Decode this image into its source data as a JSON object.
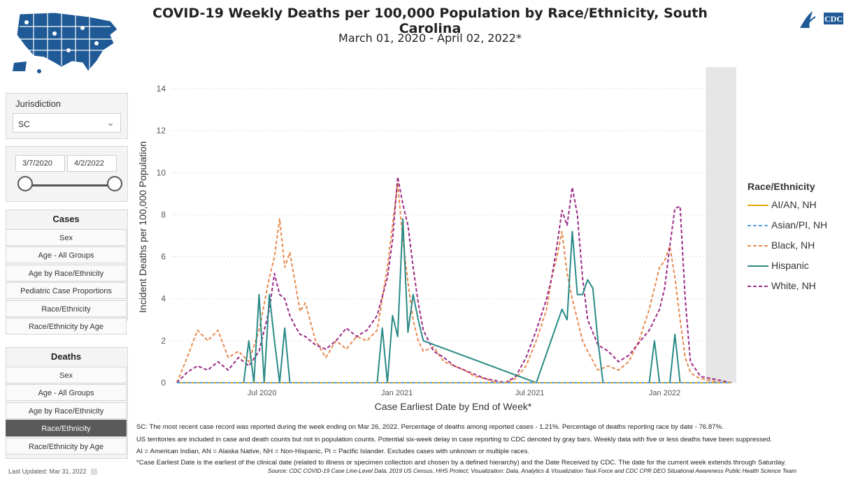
{
  "title": "COVID-19 Weekly Deaths per 100,000 Population by Race/Ethnicity, South Carolina",
  "subtitle": "March 01, 2020 - April 02, 2022*",
  "logo_text": "CDC",
  "sidebar": {
    "jurisdiction_label": "Jurisdiction",
    "jurisdiction_value": "SC",
    "date_start": "3/7/2020",
    "date_end": "4/2/2022",
    "cases_header": "Cases",
    "cases_items": [
      "Sex",
      "Age - All Groups",
      "Age by Race/Ethnicity",
      "Pediatric Case Proportions",
      "Race/Ethnicity",
      "Race/Ethnicity by Age"
    ],
    "deaths_header": "Deaths",
    "deaths_items": [
      "Sex",
      "Age - All Groups",
      "Age by Race/Ethnicity",
      "Race/Ethnicity",
      "Race/Ethnicity by Age"
    ],
    "deaths_active": "Race/Ethnicity",
    "last_updated": "Last Updated: Mar 31, 2022"
  },
  "notes": [
    "SC: The most recent case record was reported during the week ending on Mar 26, 2022. Percentage of deaths among reported cases - 1.21%. Percentage of deaths reporting race by date - 76.87%.",
    "US territories are included in case and death counts but not in population counts. Potential six-week delay in case reporting to CDC denoted by gray bars. Weekly data with five or less deaths have been suppressed.",
    "AI = American Indian, AN = Alaska Native, NH = Non-Hispanic, PI = Pacific Islander. Excludes cases with unknown or multiple races.",
    "*Case Earliest Date is the earliest of the clinical date (related to illness or specimen collection and chosen by a defined hierarchy) and the Date Received by CDC. The date for the current week extends through Saturday."
  ],
  "source": "Source: CDC COVID-19 Case Line-Level Data, 2019 US Census, HHS Protect; Visualization: Data, Analytics & Visualization Task Force and CDC CPR DEO Situational Awareness Public Health Science Team",
  "chart_data": {
    "type": "line",
    "xlabel": "Case Earliest Date by End of Week*",
    "ylabel": "Incident Deaths per 100,000 Population",
    "ylim": [
      0,
      14
    ],
    "yticks": [
      0,
      2,
      4,
      6,
      8,
      10,
      12,
      14
    ],
    "xlim": [
      "2020-03-07",
      "2022-04-02"
    ],
    "xticks": [
      {
        "date": "2020-07-01",
        "label": "Jul 2020"
      },
      {
        "date": "2021-01-01",
        "label": "Jan 2021"
      },
      {
        "date": "2021-07-01",
        "label": "Jul 2021"
      },
      {
        "date": "2022-01-01",
        "label": "Jan 2022"
      }
    ],
    "shaded_region": {
      "start": "2022-02-26",
      "end": "2022-04-02"
    },
    "legend_title": "Race/Ethnicity",
    "legend_position": "right",
    "series": [
      {
        "name": "AI/AN, NH",
        "color": "#e8a600",
        "dash": "solid",
        "dates": [
          "2020-03-07",
          "2022-04-02"
        ],
        "values": [
          0,
          0
        ]
      },
      {
        "name": "Asian/PI, NH",
        "color": "#5aa0e0",
        "dash": "dashed",
        "dates": [
          "2020-03-07",
          "2022-04-02"
        ],
        "values": [
          0,
          0
        ]
      },
      {
        "name": "Black, NH",
        "color": "#e88a4e",
        "dash": "dashed",
        "dates": [
          "2020-03-07",
          "2020-03-21",
          "2020-04-04",
          "2020-04-18",
          "2020-05-02",
          "2020-05-16",
          "2020-05-30",
          "2020-06-13",
          "2020-06-27",
          "2020-07-11",
          "2020-07-18",
          "2020-07-25",
          "2020-08-01",
          "2020-08-08",
          "2020-08-15",
          "2020-08-22",
          "2020-08-29",
          "2020-09-12",
          "2020-09-26",
          "2020-10-10",
          "2020-10-24",
          "2020-11-07",
          "2020-11-21",
          "2020-12-05",
          "2020-12-12",
          "2020-12-19",
          "2020-12-26",
          "2021-01-02",
          "2021-01-09",
          "2021-01-16",
          "2021-01-23",
          "2021-01-30",
          "2021-02-06",
          "2021-02-20",
          "2021-03-06",
          "2021-03-20",
          "2021-04-03",
          "2021-04-17",
          "2021-05-01",
          "2021-05-15",
          "2021-05-29",
          "2021-06-12",
          "2021-06-26",
          "2021-07-10",
          "2021-07-24",
          "2021-07-31",
          "2021-08-07",
          "2021-08-14",
          "2021-08-21",
          "2021-08-28",
          "2021-09-04",
          "2021-09-11",
          "2021-09-18",
          "2021-10-02",
          "2021-10-16",
          "2021-10-30",
          "2021-11-13",
          "2021-11-27",
          "2021-12-11",
          "2021-12-25",
          "2022-01-01",
          "2022-01-08",
          "2022-01-15",
          "2022-01-22",
          "2022-01-29",
          "2022-02-05",
          "2022-02-12",
          "2022-02-19",
          "2022-03-05",
          "2022-03-19",
          "2022-04-02"
        ],
        "values": [
          0,
          1.2,
          2.5,
          2.0,
          2.5,
          1.2,
          1.5,
          1.0,
          2.5,
          5.0,
          6.0,
          7.8,
          5.5,
          6.2,
          4.8,
          3.4,
          3.8,
          2.0,
          1.2,
          2.0,
          1.6,
          2.2,
          2.0,
          2.5,
          4.0,
          5.5,
          7.5,
          9.5,
          6.8,
          4.8,
          3.0,
          2.0,
          1.5,
          1.7,
          1.0,
          0.8,
          0.6,
          0.3,
          0.2,
          0,
          0,
          0.2,
          0.8,
          2.0,
          3.5,
          5.0,
          6.0,
          7.2,
          5.2,
          4.0,
          3.0,
          2.0,
          1.5,
          0.6,
          0.8,
          0.6,
          1.0,
          2.0,
          3.5,
          5.5,
          5.8,
          6.5,
          5.0,
          3.0,
          1.2,
          0.5,
          0.3,
          0.2,
          0.1,
          0,
          0
        ]
      },
      {
        "name": "Hispanic",
        "color": "#2a8a86",
        "dash": "solid",
        "dates": [
          "2020-03-07",
          "2020-06-06",
          "2020-06-13",
          "2020-06-20",
          "2020-06-27",
          "2020-07-04",
          "2020-07-11",
          "2020-07-18",
          "2020-07-25",
          "2020-08-01",
          "2020-08-08",
          "2020-08-15",
          "2020-08-22",
          "2020-12-05",
          "2020-12-12",
          "2020-12-19",
          "2020-12-26",
          "2021-01-02",
          "2021-01-09",
          "2021-01-16",
          "2021-01-23",
          "2021-01-30",
          "2021-02-06",
          "2021-07-10",
          "2021-08-14",
          "2021-08-21",
          "2021-08-28",
          "2021-09-04",
          "2021-09-11",
          "2021-09-18",
          "2021-09-25",
          "2021-10-02",
          "2021-10-09",
          "2021-10-16",
          "2021-10-23",
          "2021-12-11",
          "2021-12-18",
          "2021-12-25",
          "2022-01-08",
          "2022-01-15",
          "2022-01-22",
          "2022-04-02"
        ],
        "values": [
          0,
          0,
          2.0,
          0,
          4.2,
          0,
          4.2,
          2.0,
          0,
          2.6,
          0,
          0,
          0,
          0,
          2.6,
          0,
          3.2,
          2.2,
          7.8,
          2.4,
          4.2,
          3.0,
          2.0,
          0,
          3.5,
          3.0,
          7.2,
          4.2,
          4.2,
          4.9,
          4.5,
          2.0,
          0,
          0,
          0,
          0,
          2.0,
          0,
          0,
          2.3,
          0,
          0
        ]
      },
      {
        "name": "White, NH",
        "color": "#9b2a86",
        "dash": "dashed",
        "dates": [
          "2020-03-07",
          "2020-03-21",
          "2020-04-04",
          "2020-04-18",
          "2020-05-02",
          "2020-05-16",
          "2020-05-30",
          "2020-06-13",
          "2020-06-27",
          "2020-07-11",
          "2020-07-18",
          "2020-07-25",
          "2020-08-01",
          "2020-08-08",
          "2020-08-15",
          "2020-08-22",
          "2020-08-29",
          "2020-09-12",
          "2020-09-26",
          "2020-10-10",
          "2020-10-24",
          "2020-11-07",
          "2020-11-21",
          "2020-12-05",
          "2020-12-19",
          "2020-12-26",
          "2021-01-02",
          "2021-01-09",
          "2021-01-16",
          "2021-01-23",
          "2021-01-30",
          "2021-02-06",
          "2021-02-20",
          "2021-03-06",
          "2021-03-20",
          "2021-04-03",
          "2021-04-17",
          "2021-05-01",
          "2021-05-15",
          "2021-05-29",
          "2021-06-12",
          "2021-06-26",
          "2021-07-10",
          "2021-07-24",
          "2021-07-31",
          "2021-08-07",
          "2021-08-14",
          "2021-08-21",
          "2021-08-28",
          "2021-09-04",
          "2021-09-11",
          "2021-09-18",
          "2021-10-02",
          "2021-10-16",
          "2021-10-30",
          "2021-11-13",
          "2021-11-27",
          "2021-12-11",
          "2021-12-25",
          "2022-01-01",
          "2022-01-08",
          "2022-01-15",
          "2022-01-22",
          "2022-01-29",
          "2022-02-05",
          "2022-02-19",
          "2022-03-05",
          "2022-03-19",
          "2022-04-02"
        ],
        "values": [
          0,
          0.5,
          0.8,
          0.6,
          1.0,
          0.6,
          1.2,
          0.8,
          1.5,
          3.5,
          5.2,
          4.2,
          4.0,
          3.2,
          2.7,
          2.3,
          2.2,
          1.8,
          1.6,
          2.0,
          2.6,
          2.2,
          2.5,
          3.2,
          5.0,
          6.8,
          9.8,
          8.5,
          7.5,
          5.5,
          3.8,
          2.5,
          1.5,
          1.2,
          0.8,
          0.6,
          0.4,
          0.2,
          0.1,
          0,
          0.3,
          1.2,
          2.5,
          4.0,
          5.0,
          6.5,
          8.2,
          7.5,
          9.3,
          8.0,
          5.0,
          3.0,
          1.8,
          1.5,
          1.0,
          1.3,
          1.9,
          2.5,
          3.5,
          4.5,
          6.5,
          8.3,
          8.4,
          4.0,
          1.0,
          0.3,
          0.2,
          0.1,
          0
        ]
      }
    ]
  }
}
